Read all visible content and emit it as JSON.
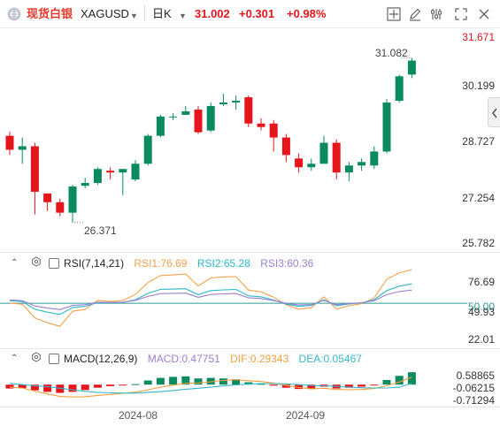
{
  "header": {
    "name": "现货白银",
    "symbol": "XAGUSD",
    "timeframe": "日K",
    "last": "31.002",
    "change": "+0.301",
    "change_pct": "+0.98%",
    "icons": [
      "crosshair-icon",
      "edit-icon",
      "settings-icon",
      "fullscreen-icon",
      "close-icon"
    ]
  },
  "main_chart": {
    "price_axis": [
      "31.671",
      "30.199",
      "28.727",
      "27.254",
      "25.782"
    ],
    "high_marker": "31.082",
    "low_marker": "26.371"
  },
  "rsi": {
    "title": "RSI(7,14,21)",
    "rsi1_label": "RSI1:76.69",
    "rsi2_label": "RSI2:65.28",
    "rsi3_label": "RSI3:60.36",
    "axis": [
      "76.69",
      "50.00",
      "49.93",
      "22.01"
    ]
  },
  "macd": {
    "title": "MACD(12,26,9)",
    "macd_label": "MACD:0.47751",
    "dif_label": "DIF:0.29343",
    "dea_label": "DEA:0.05467",
    "axis": [
      "0.58865",
      "-0.06215",
      "-0.71294"
    ]
  },
  "x_axis": [
    "2024-08",
    "2024-09"
  ],
  "colors": {
    "up": "#0a8a5f",
    "down": "#e6151b",
    "rsi1": "#f5a04c",
    "rsi2": "#2bb8c9",
    "rsi3": "#9b7fd1",
    "dif": "#f0a040",
    "dea": "#38b6c8",
    "ref_line": "#2a9d8f",
    "brand": "#e8392b"
  },
  "chart_data": {
    "type": "candlestick",
    "x_labels": [
      "2024-08",
      "2024-09"
    ],
    "ylim": [
      25.782,
      31.671
    ],
    "candles": [
      [
        28.85,
        28.45,
        28.97,
        28.3
      ],
      [
        28.45,
        28.55,
        28.8,
        28.05
      ],
      [
        28.55,
        27.25,
        28.65,
        26.6
      ],
      [
        27.2,
        26.95,
        27.2,
        26.7
      ],
      [
        26.95,
        26.65,
        27.05,
        26.55
      ],
      [
        26.65,
        27.4,
        27.45,
        26.37
      ],
      [
        27.42,
        27.5,
        27.65,
        27.35
      ],
      [
        27.5,
        27.9,
        27.95,
        27.45
      ],
      [
        27.85,
        27.8,
        27.95,
        27.6
      ],
      [
        27.8,
        27.9,
        27.9,
        27.15
      ],
      [
        27.6,
        28.05,
        28.15,
        27.55
      ],
      [
        28.05,
        28.85,
        28.9,
        28.0
      ],
      [
        28.85,
        29.4,
        29.45,
        28.8
      ],
      [
        29.4,
        29.4,
        29.5,
        29.3
      ],
      [
        29.45,
        29.55,
        29.7,
        29.45
      ],
      [
        29.6,
        28.95,
        29.7,
        28.9
      ],
      [
        29.0,
        29.7,
        29.8,
        28.95
      ],
      [
        29.75,
        29.8,
        30.05,
        29.7
      ],
      [
        29.8,
        29.85,
        30.0,
        29.6
      ],
      [
        29.95,
        29.2,
        30.0,
        29.1
      ],
      [
        29.2,
        29.1,
        29.35,
        29.0
      ],
      [
        29.2,
        28.8,
        29.3,
        28.4
      ],
      [
        28.8,
        28.3,
        28.9,
        28.1
      ],
      [
        28.2,
        27.95,
        28.35,
        27.8
      ],
      [
        27.95,
        28.05,
        28.2,
        27.85
      ],
      [
        28.05,
        28.65,
        28.85,
        28.05
      ],
      [
        28.65,
        27.8,
        28.75,
        27.6
      ],
      [
        27.8,
        28.0,
        28.1,
        27.55
      ],
      [
        28.0,
        28.1,
        28.2,
        27.85
      ],
      [
        28.0,
        28.4,
        28.55,
        27.9
      ],
      [
        28.4,
        29.8,
        29.9,
        28.35
      ],
      [
        29.85,
        30.55,
        30.6,
        29.8
      ],
      [
        30.6,
        31.0,
        31.08,
        30.5
      ]
    ],
    "rsi": {
      "rsi1": [
        50.1,
        49.2,
        38.4,
        34.5,
        31.7,
        43.6,
        45.1,
        52.3,
        51.4,
        52.1,
        57.0,
        66.4,
        71.9,
        72.4,
        73.2,
        63.7,
        70.0,
        70.9,
        71.1,
        60.4,
        59.0,
        54.8,
        48.7,
        45.2,
        46.5,
        55.0,
        45.3,
        48.0,
        49.6,
        54.2,
        69.0,
        74.2,
        76.7
      ],
      "rsi2": [
        52.0,
        51.3,
        45.2,
        42.9,
        41.1,
        46.6,
        47.5,
        50.6,
        50.3,
        50.6,
        52.8,
        57.8,
        61.0,
        61.2,
        61.5,
        56.8,
        60.0,
        60.6,
        60.9,
        55.9,
        55.0,
        52.6,
        49.3,
        47.5,
        48.2,
        52.8,
        48.0,
        49.4,
        50.3,
        52.7,
        60.0,
        63.5,
        65.3
      ],
      "rsi3": [
        52.6,
        52.0,
        47.8,
        46.1,
        44.9,
        48.2,
        48.8,
        50.8,
        50.6,
        50.8,
        52.3,
        55.4,
        57.6,
        57.8,
        58.0,
        54.7,
        56.9,
        57.4,
        57.7,
        54.3,
        53.7,
        52.1,
        49.9,
        48.6,
        49.0,
        52.2,
        48.9,
        49.8,
        50.4,
        52.0,
        56.8,
        59.2,
        60.4
      ],
      "ylim": [
        22.01,
        76.69
      ],
      "ref": 50.0
    },
    "macd": {
      "hist": [
        -0.15,
        -0.14,
        -0.22,
        -0.28,
        -0.32,
        -0.28,
        -0.21,
        -0.12,
        -0.06,
        -0.03,
        0.02,
        0.16,
        0.26,
        0.3,
        0.32,
        0.24,
        0.26,
        0.24,
        0.21,
        0.09,
        0.03,
        -0.04,
        -0.12,
        -0.17,
        -0.17,
        -0.08,
        -0.15,
        -0.12,
        -0.08,
        -0.02,
        0.18,
        0.34,
        0.48
      ],
      "dif": [
        -0.1,
        -0.13,
        -0.25,
        -0.36,
        -0.46,
        -0.48,
        -0.47,
        -0.42,
        -0.38,
        -0.34,
        -0.29,
        -0.2,
        -0.1,
        -0.02,
        0.05,
        0.06,
        0.11,
        0.16,
        0.19,
        0.15,
        0.12,
        0.06,
        -0.03,
        -0.11,
        -0.16,
        -0.14,
        -0.19,
        -0.2,
        -0.19,
        -0.15,
        -0.04,
        0.1,
        0.29
      ],
      "dea": [
        0.05,
        0.0,
        -0.04,
        -0.08,
        -0.14,
        -0.2,
        -0.26,
        -0.3,
        -0.32,
        -0.33,
        -0.33,
        -0.3,
        -0.27,
        -0.23,
        -0.18,
        -0.14,
        -0.1,
        -0.05,
        -0.01,
        0.02,
        0.04,
        0.04,
        0.03,
        0.0,
        -0.03,
        -0.05,
        -0.07,
        -0.1,
        -0.12,
        -0.13,
        -0.13,
        -0.1,
        0.05
      ],
      "ylim": [
        -0.71294,
        0.58865
      ]
    }
  }
}
